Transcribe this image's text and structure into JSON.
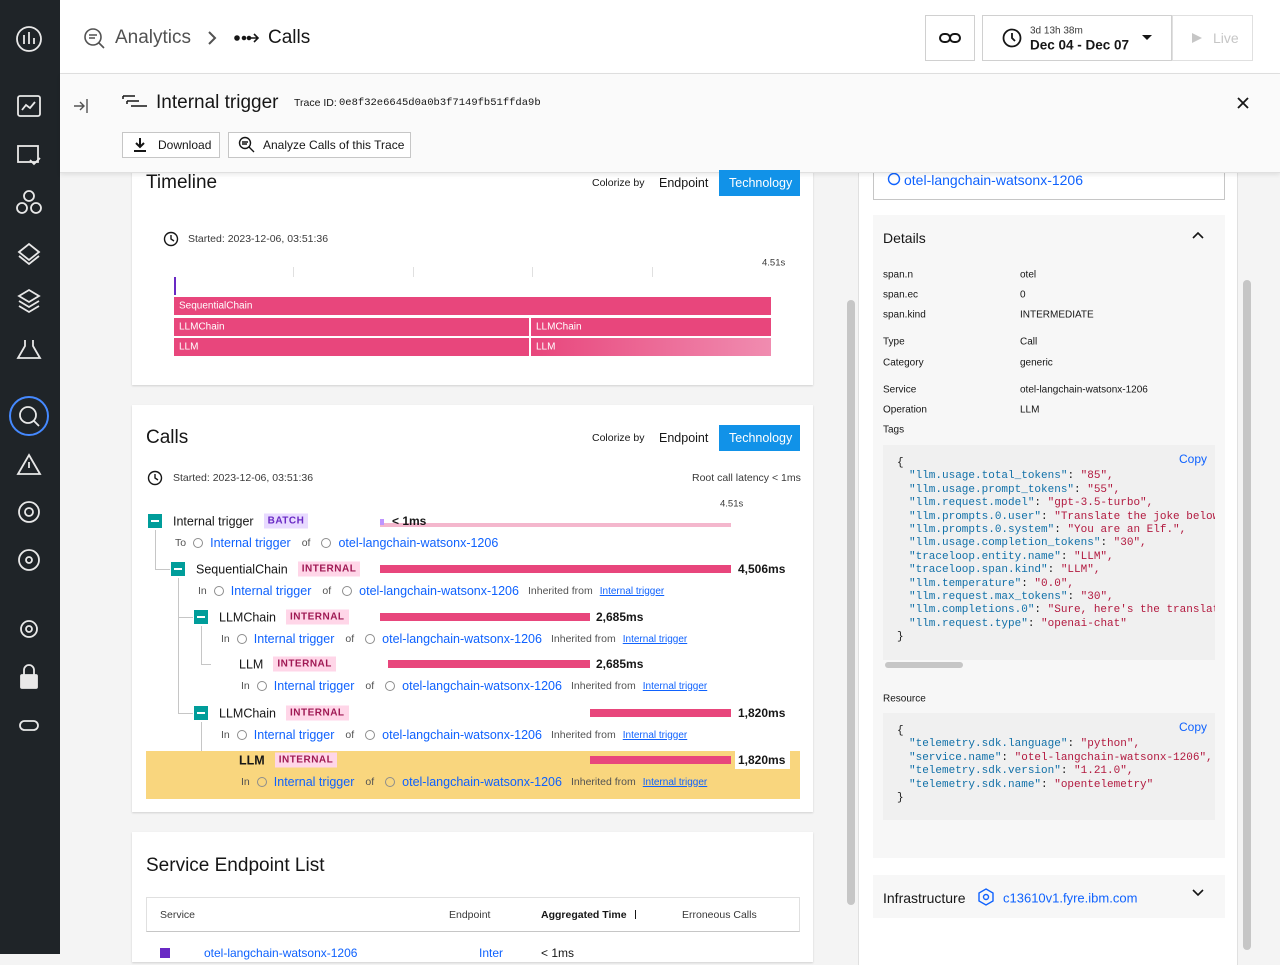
{
  "header": {
    "breadcrumb": [
      "Analytics",
      "Calls"
    ],
    "time_range": {
      "duration": "3d 13h 38m",
      "range": "Dec 04 - Dec 07"
    },
    "live": "Live"
  },
  "trace": {
    "title": "Internal trigger",
    "trace_id_label": "Trace ID:",
    "trace_id": "0e8f32e6645d0a0b3f7149fb51ffda9b",
    "actions": [
      "Download",
      "Analyze Calls of this Trace"
    ]
  },
  "timeline": {
    "title": "Timeline",
    "colorize_label": "Colorize by",
    "colorize_options": [
      "Endpoint",
      "Technology"
    ],
    "started": "Started: 2023-12-06, 03:51:36",
    "scale_end": "4.51s",
    "spans": [
      "SequentialChain",
      "LLMChain",
      "LLMChain",
      "LLM",
      "LLM"
    ]
  },
  "calls": {
    "title": "Calls",
    "colorize_label": "Colorize by",
    "colorize_options": [
      "Endpoint",
      "Technology"
    ],
    "started": "Started: 2023-12-06, 03:51:36",
    "root_latency": "Root call latency < 1ms",
    "scale_end": "4.51s",
    "rows": [
      {
        "name": "Internal trigger",
        "kind": "BATCH",
        "duration": "< 1ms",
        "relation": "To",
        "caller": "Internal trigger",
        "of": "of",
        "service": "otel-langchain-watsonx-1206"
      },
      {
        "name": "SequentialChain",
        "kind": "INTERNAL",
        "duration": "4,506ms",
        "relation": "In",
        "caller": "Internal trigger",
        "of": "of",
        "service": "otel-langchain-watsonx-1206",
        "inherited": "Inherited from",
        "inherited_from": "Internal trigger"
      },
      {
        "name": "LLMChain",
        "kind": "INTERNAL",
        "duration": "2,685ms",
        "relation": "In",
        "caller": "Internal trigger",
        "of": "of",
        "service": "otel-langchain-watsonx-1206",
        "inherited": "Inherited from",
        "inherited_from": "Internal trigger"
      },
      {
        "name": "LLM",
        "kind": "INTERNAL",
        "duration": "2,685ms",
        "relation": "In",
        "caller": "Internal trigger",
        "of": "of",
        "service": "otel-langchain-watsonx-1206",
        "inherited": "Inherited from",
        "inherited_from": "Internal trigger"
      },
      {
        "name": "LLMChain",
        "kind": "INTERNAL",
        "duration": "1,820ms",
        "relation": "In",
        "caller": "Internal trigger",
        "of": "of",
        "service": "otel-langchain-watsonx-1206",
        "inherited": "Inherited from",
        "inherited_from": "Internal trigger"
      },
      {
        "name": "LLM",
        "kind": "INTERNAL",
        "duration": "1,820ms",
        "relation": "In",
        "caller": "Internal trigger",
        "of": "of",
        "service": "otel-langchain-watsonx-1206",
        "inherited": "Inherited from",
        "inherited_from": "Internal trigger"
      }
    ]
  },
  "service_endpoint_list": {
    "title": "Service Endpoint List",
    "columns": [
      "Service",
      "Endpoint",
      "Aggregated Time",
      "Erroneous Calls"
    ],
    "rows": [
      [
        "otel-langchain-watsonx-1206",
        "Inter",
        "< 1ms"
      ]
    ]
  },
  "details_panel": {
    "service": "otel-langchain-watsonx-1206",
    "details_title": "Details",
    "fields": [
      [
        "span.n",
        "otel"
      ],
      [
        "span.ec",
        "0"
      ],
      [
        "span.kind",
        "INTERMEDIATE"
      ],
      [
        "Type",
        "Call"
      ],
      [
        "Category",
        "generic"
      ],
      [
        "Service",
        "otel-langchain-watsonx-1206"
      ],
      [
        "Operation",
        "LLM"
      ]
    ],
    "tags_label": "Tags",
    "copy": "Copy",
    "open": "{",
    "close": "}",
    "separator": ": ",
    "tags": [
      [
        "\"llm.usage.total_tokens\"",
        "\"85\","
      ],
      [
        "\"llm.usage.prompt_tokens\"",
        "\"55\","
      ],
      [
        "\"llm.request.model\"",
        "\"gpt-3.5-turbo\","
      ],
      [
        "\"llm.prompts.0.user\"",
        "\"Translate the joke below i"
      ],
      [
        "\"llm.prompts.0.system\"",
        "\"You are an Elf.\","
      ],
      [
        "\"llm.usage.completion_tokens\"",
        "\"30\","
      ],
      [
        "\"traceloop.entity.name\"",
        "\"LLM\","
      ],
      [
        "\"traceloop.span.kind\"",
        "\"LLM\","
      ],
      [
        "\"llm.temperature\"",
        "\"0.0\","
      ],
      [
        "\"llm.request.max_tokens\"",
        "\"30\","
      ],
      [
        "\"llm.completions.0\"",
        "\"Sure, here's the translatio"
      ],
      [
        "\"llm.request.type\"",
        "\"openai-chat\""
      ]
    ],
    "resource_label": "Resource",
    "resource": [
      [
        "\"telemetry.sdk.language\"",
        "\"python\","
      ],
      [
        "\"service.name\"",
        "\"otel-langchain-watsonx-1206\","
      ],
      [
        "\"telemetry.sdk.version\"",
        "\"1.21.0\","
      ],
      [
        "\"telemetry.sdk.name\"",
        "\"opentelemetry\""
      ]
    ],
    "infrastructure_label": "Infrastructure",
    "infrastructure_host": "c13610v1.fyre.ibm.com"
  }
}
